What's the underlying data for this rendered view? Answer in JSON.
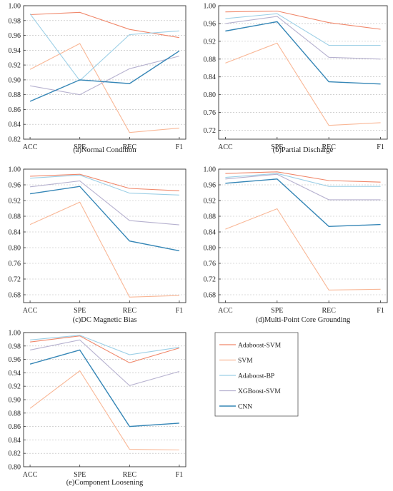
{
  "colors": {
    "Adaboost-SVM": "#f0876a",
    "SVM": "#f9b796",
    "Adaboost-BP": "#9ccfe6",
    "XGBoost-SVM": "#b6b1cf",
    "CNN": "#3586b6"
  },
  "legend": {
    "placement": "right of panel (e)",
    "entries": [
      "Adaboost-SVM",
      "SVM",
      "Adaboost-BP",
      "XGBoost-SVM",
      "CNN"
    ]
  },
  "chart_data": [
    {
      "type": "line",
      "caption": "(a)Normal Condition",
      "categories": [
        "ACC",
        "SPE",
        "REC",
        "F1"
      ],
      "ylim": [
        0.82,
        1.0
      ],
      "yticks": [
        "0.82",
        "0.84",
        "0.86",
        "0.88",
        "0.90",
        "0.92",
        "0.94",
        "0.96",
        "0.98",
        "1.00"
      ],
      "grid": "horizontal dashed",
      "series": [
        {
          "name": "Adaboost-SVM",
          "values": [
            0.988,
            0.991,
            0.968,
            0.957
          ]
        },
        {
          "name": "SVM",
          "values": [
            0.914,
            0.949,
            0.829,
            0.835
          ]
        },
        {
          "name": "Adaboost-BP",
          "values": [
            0.989,
            0.899,
            0.961,
            0.966
          ]
        },
        {
          "name": "XGBoost-SVM",
          "values": [
            0.892,
            0.88,
            0.915,
            0.932
          ]
        },
        {
          "name": "CNN",
          "values": [
            0.871,
            0.9,
            0.895,
            0.939
          ]
        }
      ]
    },
    {
      "type": "line",
      "caption": "(b)Partial Discharge",
      "categories": [
        "ACC",
        "SPE",
        "REC",
        "F1"
      ],
      "ylim": [
        0.7,
        1.0
      ],
      "yticks": [
        "0.72",
        "0.76",
        "0.80",
        "0.84",
        "0.88",
        "0.92",
        "0.96",
        "1.00"
      ],
      "grid": "horizontal dashed",
      "series": [
        {
          "name": "Adaboost-SVM",
          "values": [
            0.986,
            0.988,
            0.962,
            0.947
          ]
        },
        {
          "name": "SVM",
          "values": [
            0.871,
            0.916,
            0.731,
            0.737
          ]
        },
        {
          "name": "Adaboost-BP",
          "values": [
            0.971,
            0.982,
            0.911,
            0.911
          ]
        },
        {
          "name": "XGBoost-SVM",
          "values": [
            0.96,
            0.976,
            0.884,
            0.88
          ]
        },
        {
          "name": "CNN",
          "values": [
            0.943,
            0.964,
            0.829,
            0.824
          ]
        }
      ]
    },
    {
      "type": "line",
      "caption": "(c)DC Magnetic Bias",
      "categories": [
        "ACC",
        "SPE",
        "REC",
        "F1"
      ],
      "ylim": [
        0.66,
        1.0
      ],
      "yticks": [
        "0.68",
        "0.72",
        "0.76",
        "0.80",
        "0.84",
        "0.88",
        "0.92",
        "0.96",
        "1.00"
      ],
      "grid": "horizontal dashed",
      "series": [
        {
          "name": "Adaboost-SVM",
          "values": [
            0.982,
            0.987,
            0.951,
            0.945
          ]
        },
        {
          "name": "SVM",
          "values": [
            0.859,
            0.916,
            0.674,
            0.678
          ]
        },
        {
          "name": "Adaboost-BP",
          "values": [
            0.977,
            0.985,
            0.939,
            0.934
          ]
        },
        {
          "name": "XGBoost-SVM",
          "values": [
            0.955,
            0.97,
            0.869,
            0.858
          ]
        },
        {
          "name": "CNN",
          "values": [
            0.937,
            0.956,
            0.817,
            0.792
          ]
        }
      ]
    },
    {
      "type": "line",
      "caption": "(d)Multi-Point Core Grounding",
      "categories": [
        "ACC",
        "SPE",
        "REC",
        "F1"
      ],
      "ylim": [
        0.66,
        1.0
      ],
      "yticks": [
        "0.68",
        "0.72",
        "0.76",
        "0.80",
        "0.84",
        "0.88",
        "0.92",
        "0.96",
        "1.00"
      ],
      "grid": "horizontal dashed",
      "series": [
        {
          "name": "Adaboost-SVM",
          "values": [
            0.989,
            0.993,
            0.971,
            0.967
          ]
        },
        {
          "name": "SVM",
          "values": [
            0.847,
            0.899,
            0.692,
            0.694
          ]
        },
        {
          "name": "Adaboost-BP",
          "values": [
            0.979,
            0.989,
            0.956,
            0.956
          ]
        },
        {
          "name": "XGBoost-SVM",
          "values": [
            0.975,
            0.987,
            0.922,
            0.922
          ]
        },
        {
          "name": "CNN",
          "values": [
            0.964,
            0.975,
            0.854,
            0.859
          ]
        }
      ]
    },
    {
      "type": "line",
      "caption": "(e)Component Loosening",
      "categories": [
        "ACC",
        "SPE",
        "REC",
        "F1"
      ],
      "ylim": [
        0.8,
        1.0
      ],
      "yticks": [
        "0.80",
        "0.82",
        "0.84",
        "0.86",
        "0.88",
        "0.90",
        "0.92",
        "0.94",
        "0.96",
        "0.98",
        "1.00"
      ],
      "grid": "horizontal dashed",
      "series": [
        {
          "name": "Adaboost-SVM",
          "values": [
            0.986,
            0.995,
            0.955,
            0.977
          ]
        },
        {
          "name": "SVM",
          "values": [
            0.887,
            0.943,
            0.826,
            0.825
          ]
        },
        {
          "name": "Adaboost-BP",
          "values": [
            0.989,
            0.996,
            0.967,
            0.978
          ]
        },
        {
          "name": "XGBoost-SVM",
          "values": [
            0.974,
            0.989,
            0.921,
            0.942
          ]
        },
        {
          "name": "CNN",
          "values": [
            0.953,
            0.974,
            0.86,
            0.865
          ]
        }
      ]
    }
  ]
}
